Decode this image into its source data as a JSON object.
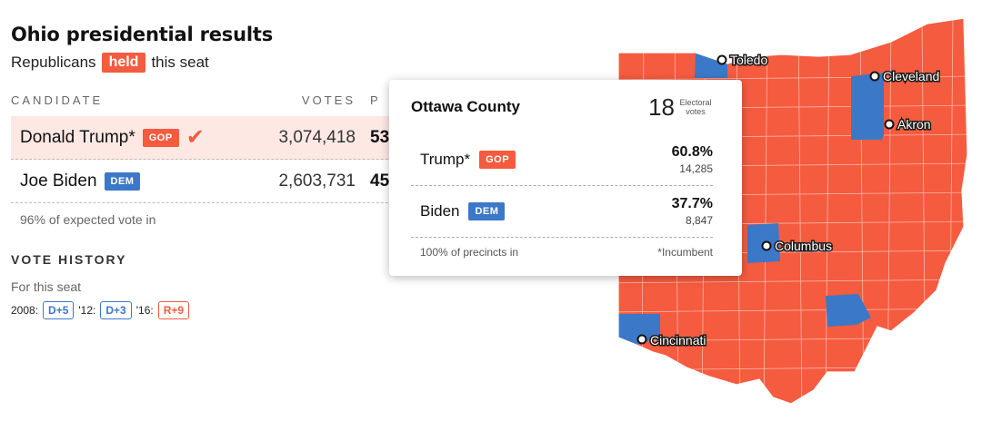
{
  "header": {
    "title": "Ohio presidential results",
    "subtitle_pre": "Republicans",
    "subtitle_badge": "held",
    "subtitle_post": "this seat"
  },
  "table": {
    "col_candidate": "CANDIDATE",
    "col_votes": "VOTES",
    "col_pct": "P",
    "rows": [
      {
        "name": "Donald Trump*",
        "party": "GOP",
        "votes": "3,074,418",
        "pct": "53"
      },
      {
        "name": "Joe Biden",
        "party": "DEM",
        "votes": "2,603,731",
        "pct": "45"
      }
    ],
    "expected": "96% of expected vote in"
  },
  "history": {
    "title": "VOTE HISTORY",
    "subtitle": "For this seat",
    "items": [
      {
        "label": "2008:",
        "value": "D+5"
      },
      {
        "label": "'12:",
        "value": "D+3"
      },
      {
        "label": "'16:",
        "value": "R+9"
      }
    ]
  },
  "tooltip": {
    "county": "Ottawa County",
    "electoral_votes": "18",
    "electoral_label": "Electoral votes",
    "rows": [
      {
        "name": "Trump*",
        "party": "GOP",
        "pct": "60.8%",
        "votes": "14,285"
      },
      {
        "name": "Biden",
        "party": "DEM",
        "pct": "37.7%",
        "votes": "8,847"
      }
    ],
    "precincts": "100% of precincts in",
    "footnote": "*Incumbent"
  },
  "map": {
    "cities": [
      "Toledo",
      "Cleveland",
      "Akron",
      "Columbus",
      "Cincinnati"
    ],
    "colors": {
      "gop": "#f55b3f",
      "dem": "#3c78c8"
    }
  }
}
